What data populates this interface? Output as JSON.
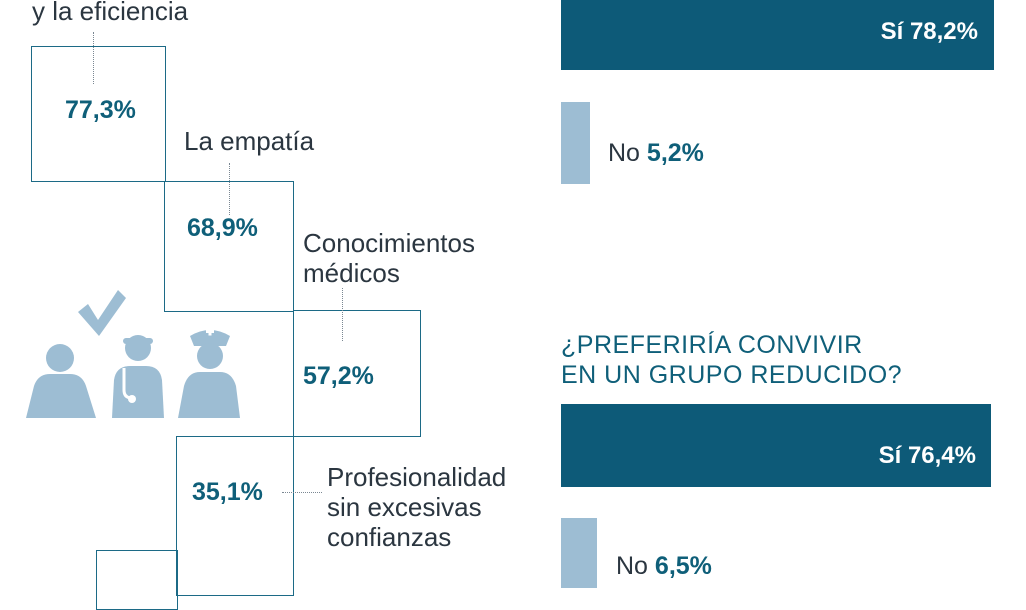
{
  "chart_data": [
    {
      "type": "bar",
      "title": "",
      "categories": [
        "y la eficiencia",
        "La empatía",
        "Conocimientos médicos",
        "Profesionalidad sin excesivas confianzas"
      ],
      "values": [
        77.3,
        68.9,
        57.2,
        35.1
      ],
      "value_labels": [
        "77,3%",
        "68,9%",
        "57,2%",
        "35,1%"
      ],
      "label_lines": [
        [
          "y la eficiencia"
        ],
        [
          "La empatía"
        ],
        [
          "Conocimientos",
          "médicos"
        ],
        [
          "Profesionalidad",
          "sin excesivas",
          "confianzas"
        ]
      ]
    },
    {
      "type": "bar",
      "title": "",
      "categories": [
        "Sí",
        "No"
      ],
      "values": [
        78.2,
        5.2
      ],
      "value_labels": [
        "78,2%",
        "5,2%"
      ],
      "colors": [
        "#0d5a78",
        "#9dbdd3"
      ]
    },
    {
      "type": "bar",
      "title": "¿PREFERIRÍA CONVIVIR EN UN GRUPO REDUCIDO?",
      "title_lines": [
        "¿PREFERIRÍA CONVIVIR",
        "EN UN GRUPO REDUCIDO?"
      ],
      "categories": [
        "Sí",
        "No"
      ],
      "values": [
        76.4,
        6.5
      ],
      "value_labels": [
        "76,4%",
        "6,5%"
      ],
      "colors": [
        "#0d5a78",
        "#9dbdd3"
      ]
    }
  ],
  "icons": [
    "person-check-icon",
    "doctor-icon",
    "nurse-icon"
  ],
  "icon_color": "#9dbdd3"
}
